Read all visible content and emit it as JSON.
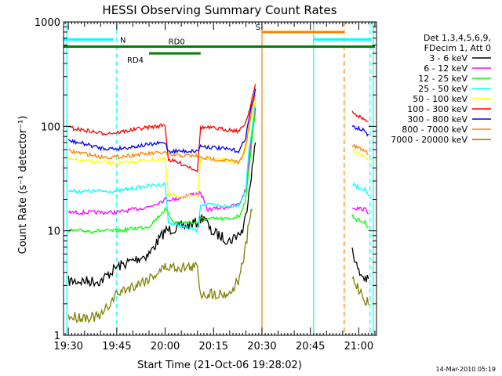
{
  "chart_data": {
    "type": "line",
    "title": "HESSI Observing Summary Count Rates",
    "xlabel": "Start Time (21-Oct-06 19:28:02)",
    "ylabel": "Count Rate (s⁻¹ detector⁻¹)",
    "scale": {
      "y": "log"
    },
    "xlim_min": [
      -1.5,
      95.5
    ],
    "ylim": [
      1,
      1000
    ],
    "x_ticks": [
      {
        "value": 0,
        "label": "19:30"
      },
      {
        "value": 15,
        "label": "19:45"
      },
      {
        "value": 30,
        "label": "20:00"
      },
      {
        "value": 45,
        "label": "20:15"
      },
      {
        "value": 60,
        "label": "20:30"
      },
      {
        "value": 75,
        "label": "20:45"
      },
      {
        "value": 90,
        "label": "21:00"
      }
    ],
    "y_ticks": [
      {
        "value": 1,
        "label": "1"
      },
      {
        "value": 10,
        "label": "10"
      },
      {
        "value": 100,
        "label": "100"
      },
      {
        "value": 1000,
        "label": "1000"
      }
    ],
    "legend": {
      "position": "right",
      "header": [
        "Det 1,3,4,5,6,9,",
        "FDecim 1, Att 0"
      ]
    },
    "series": [
      {
        "name": "3 - 6 keV",
        "color": "#000000",
        "points": [
          [
            0,
            3.3
          ],
          [
            10,
            3.3
          ],
          [
            15,
            4.5
          ],
          [
            25,
            6
          ],
          [
            30,
            10
          ],
          [
            40,
            12
          ],
          [
            42,
            14
          ],
          [
            44,
            10
          ],
          [
            50,
            8
          ],
          [
            52,
            9
          ],
          [
            54,
            10
          ],
          [
            55,
            14
          ],
          [
            56,
            25
          ],
          [
            57,
            40
          ],
          [
            58,
            70
          ]
        ],
        "points2": [
          [
            88,
            7
          ],
          [
            89,
            5
          ],
          [
            90,
            4
          ],
          [
            92,
            3.5
          ],
          [
            93,
            3.3
          ]
        ]
      },
      {
        "name": "6 - 12 keV",
        "color": "#ff00ff",
        "points": [
          [
            0,
            15
          ],
          [
            15,
            15
          ],
          [
            25,
            17
          ],
          [
            30,
            20
          ],
          [
            33,
            20
          ],
          [
            37,
            22
          ],
          [
            41,
            23
          ],
          [
            43,
            16
          ],
          [
            50,
            17
          ],
          [
            53,
            18
          ],
          [
            55,
            25
          ],
          [
            56,
            50
          ],
          [
            57,
            90
          ],
          [
            58,
            150
          ]
        ],
        "points2": [
          [
            88,
            17
          ],
          [
            89,
            16.5
          ],
          [
            92,
            16
          ],
          [
            93,
            15
          ]
        ]
      },
      {
        "name": "12 - 25 keV",
        "color": "#00ff00",
        "points": [
          [
            0,
            10
          ],
          [
            15,
            10
          ],
          [
            25,
            11
          ],
          [
            30,
            16
          ],
          [
            33,
            12
          ],
          [
            40,
            12
          ],
          [
            41,
            13
          ],
          [
            42,
            13
          ],
          [
            50,
            13
          ],
          [
            53,
            14
          ],
          [
            55,
            20
          ],
          [
            56,
            40
          ],
          [
            57,
            80
          ],
          [
            58,
            140
          ]
        ],
        "points2": [
          [
            88,
            14
          ],
          [
            89,
            13
          ],
          [
            92,
            12
          ],
          [
            93,
            11
          ]
        ]
      },
      {
        "name": "25 - 50 keV",
        "color": "#00ffff",
        "points": [
          [
            0,
            24
          ],
          [
            15,
            24
          ],
          [
            25,
            27
          ],
          [
            30,
            28
          ],
          [
            31,
            12
          ],
          [
            40,
            10
          ],
          [
            41,
            18
          ],
          [
            50,
            17
          ],
          [
            53,
            18
          ],
          [
            55,
            25
          ],
          [
            56,
            60
          ],
          [
            57,
            100
          ],
          [
            58,
            170
          ]
        ],
        "points2": [
          [
            88,
            28
          ],
          [
            90,
            26
          ],
          [
            92,
            25
          ],
          [
            93,
            22
          ]
        ]
      },
      {
        "name": "50 - 100 keV",
        "color": "#ffff00",
        "points": [
          [
            0,
            48
          ],
          [
            15,
            44
          ],
          [
            25,
            48
          ],
          [
            30,
            48
          ],
          [
            31,
            22
          ],
          [
            40,
            21
          ],
          [
            41,
            50
          ],
          [
            50,
            47
          ],
          [
            53,
            45
          ],
          [
            55,
            60
          ],
          [
            56,
            90
          ],
          [
            57,
            130
          ],
          [
            58,
            180
          ]
        ],
        "points2": [
          [
            88,
            60
          ],
          [
            90,
            55
          ],
          [
            92,
            50
          ],
          [
            93,
            48
          ]
        ]
      },
      {
        "name": "100 - 300 keV",
        "color": "#ff0000",
        "points": [
          [
            0,
            97
          ],
          [
            5,
            92
          ],
          [
            10,
            86
          ],
          [
            15,
            87
          ],
          [
            22,
            95
          ],
          [
            30,
            103
          ],
          [
            31,
            48
          ],
          [
            35,
            44
          ],
          [
            40,
            38
          ],
          [
            41,
            98
          ],
          [
            50,
            93
          ],
          [
            53,
            90
          ],
          [
            55,
            110
          ],
          [
            56,
            140
          ],
          [
            57,
            190
          ],
          [
            58,
            250
          ]
        ],
        "points2": [
          [
            88,
            135
          ],
          [
            89,
            130
          ],
          [
            90,
            125
          ],
          [
            92,
            115
          ],
          [
            93,
            110
          ]
        ]
      },
      {
        "name": "300 - 800 keV",
        "color": "#0000ff",
        "points": [
          [
            0,
            73
          ],
          [
            5,
            68
          ],
          [
            10,
            62
          ],
          [
            15,
            61
          ],
          [
            22,
            65
          ],
          [
            30,
            70
          ],
          [
            31,
            58
          ],
          [
            40,
            58
          ],
          [
            41,
            65
          ],
          [
            50,
            60
          ],
          [
            53,
            58
          ],
          [
            55,
            80
          ],
          [
            56,
            120
          ],
          [
            57,
            170
          ],
          [
            58,
            220
          ]
        ],
        "points2": [
          [
            88,
            100
          ],
          [
            90,
            95
          ],
          [
            92,
            90
          ],
          [
            93,
            82
          ]
        ]
      },
      {
        "name": "800 - 7000 keV",
        "color": "#ff8000",
        "points": [
          [
            0,
            58
          ],
          [
            5,
            55
          ],
          [
            10,
            51
          ],
          [
            15,
            51
          ],
          [
            22,
            54
          ],
          [
            30,
            56
          ],
          [
            31,
            53
          ],
          [
            40,
            52
          ],
          [
            41,
            50
          ],
          [
            50,
            47
          ],
          [
            53,
            45
          ],
          [
            55,
            65
          ],
          [
            56,
            100
          ],
          [
            57,
            150
          ],
          [
            58,
            200
          ]
        ],
        "points2": [
          [
            88,
            65
          ],
          [
            90,
            62
          ],
          [
            92,
            58
          ],
          [
            93,
            55
          ]
        ]
      },
      {
        "name": "7000 - 20000 keV",
        "color": "#808000",
        "points": [
          [
            0,
            1.5
          ],
          [
            10,
            1.5
          ],
          [
            15,
            2.5
          ],
          [
            25,
            3.5
          ],
          [
            30,
            4.5
          ],
          [
            40,
            4.5
          ],
          [
            41,
            2.5
          ],
          [
            50,
            2.5
          ],
          [
            53,
            3.5
          ],
          [
            55,
            7
          ],
          [
            56,
            12
          ],
          [
            57,
            16
          ]
        ],
        "points2": [
          [
            88,
            3.5
          ],
          [
            90,
            2.8
          ],
          [
            92,
            2.2
          ],
          [
            93,
            2
          ]
        ]
      }
    ],
    "annotations": [
      {
        "label": "N",
        "color": "#00ffff",
        "x": [
          -1.5,
          14
        ],
        "y": 680
      },
      {
        "label": "RD0",
        "color": "#008000",
        "x": [
          -1.5,
          95
        ],
        "y": 580
      },
      {
        "label": "RD4",
        "color": "#008000",
        "x": [
          25,
          41
        ],
        "y": 500
      },
      {
        "label": "S",
        "color": "#ff8000",
        "x": [
          60,
          85.5
        ],
        "y": 800
      },
      {
        "label": "",
        "color": "#00ffff",
        "x": [
          76,
          94
        ],
        "y": 680
      }
    ],
    "vlines": [
      {
        "x": -0.5,
        "color": "#00ffff",
        "dash": false
      },
      {
        "x": 15,
        "color": "#00ffff",
        "dash": true
      },
      {
        "x": 60,
        "color": "#ff8000",
        "dash": false
      },
      {
        "x": 76,
        "color": "#00ffff",
        "dash": false
      },
      {
        "x": 85.5,
        "color": "#ff8000",
        "dash": true
      },
      {
        "x": 93.5,
        "color": "#00ffff",
        "dash": true
      },
      {
        "x": 94.5,
        "color": "#00ffff",
        "dash": false
      }
    ]
  },
  "footer_timestamp": "14-Mar-2010 05:19"
}
